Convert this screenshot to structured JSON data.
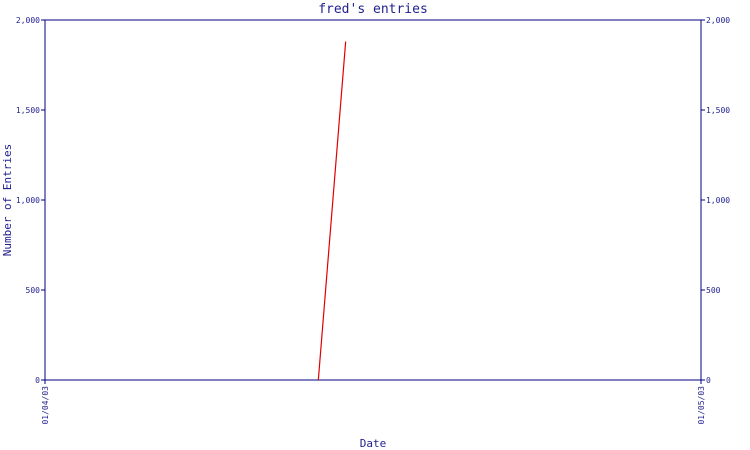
{
  "chart_data": {
    "type": "line",
    "title": "fred's entries",
    "xlabel": "Date",
    "ylabel": "Number of Entries",
    "x_tick_labels": [
      "01/04/03",
      "01/05/03"
    ],
    "y_tick_labels": [
      "0",
      "500",
      "1,000",
      "1,500",
      "2,000"
    ],
    "y_tick_values": [
      0,
      500,
      1000,
      1500,
      2000
    ],
    "ylim": [
      0,
      2000
    ],
    "xlim": [
      "01/04/03",
      "01/05/03"
    ],
    "grid": false,
    "secondary_y_axis": true,
    "series": [
      {
        "color": "#e00000",
        "x": [
          "01/04/03 10:00",
          "01/04/03 11:00"
        ],
        "y": [
          0,
          1880
        ]
      }
    ]
  },
  "colors": {
    "axis": "#000080",
    "text": "#1f1f8f",
    "series": "#e00000"
  }
}
